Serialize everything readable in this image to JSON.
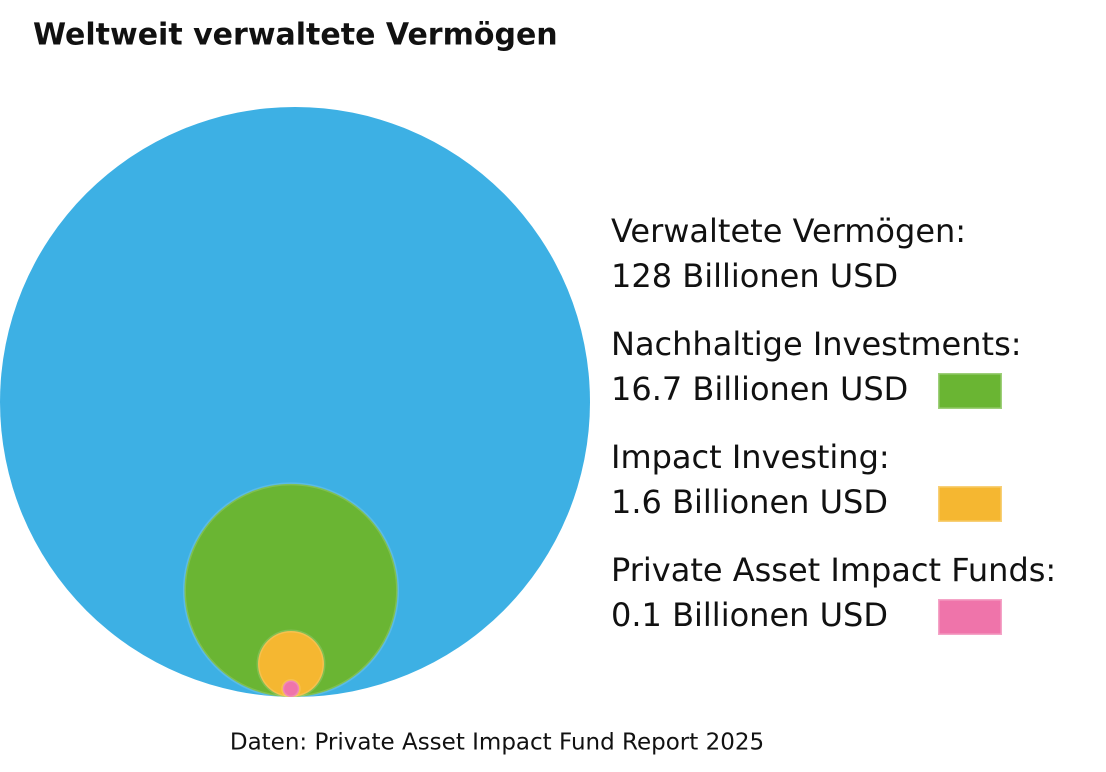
{
  "chart_data": {
    "type": "nested-circle",
    "title": "Weltweit verwaltete Vermögen",
    "source": "Daten: Private Asset Impact Fund Report 2025",
    "categories": [
      "Verwaltete Vermögen:",
      "Nachhaltige Investments:",
      "Impact Investing:",
      "Private Asset Impact Funds:"
    ],
    "values": [
      128,
      16.7,
      1.6,
      0.1
    ],
    "value_labels": [
      "128 Billionen USD",
      "16.7 Billionen USD",
      "1.6 Billionen USD",
      "0.1 Billionen USD"
    ],
    "colors": [
      "#3db0e4",
      "#6ab533",
      "#f5b731",
      "#ef74aa"
    ]
  }
}
